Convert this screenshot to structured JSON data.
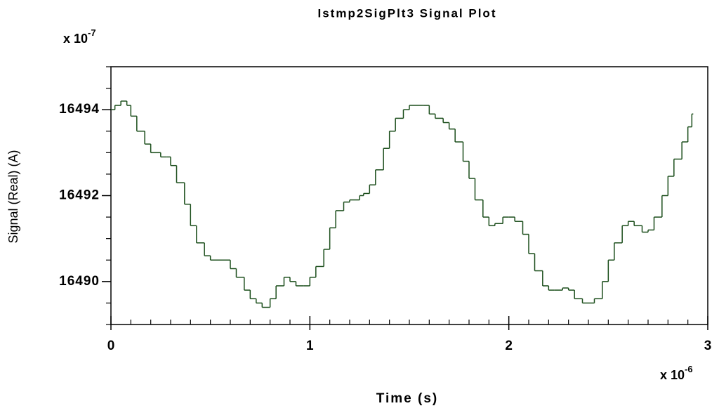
{
  "chart_data": {
    "type": "step",
    "title": "Istmp2SigPlt3 Signal Plot",
    "xlabel": "Time (s)",
    "ylabel": "Signal (Real) (A)",
    "x_multiplier": {
      "base": "x 10",
      "exponent": "-6"
    },
    "y_multiplier": {
      "base": "x 10",
      "exponent": "-7"
    },
    "xlim": [
      0,
      3
    ],
    "ylim": [
      16489,
      16495
    ],
    "xticks": [
      0,
      1,
      2,
      3
    ],
    "yticks": [
      16490,
      16492,
      16494
    ],
    "xminorticks": [
      0.1,
      0.2,
      0.3,
      0.4,
      0.5,
      0.6,
      0.7,
      0.8,
      0.9,
      1.1,
      1.2,
      1.3,
      1.4,
      1.5,
      1.6,
      1.7,
      1.8,
      1.9,
      2.1,
      2.2,
      2.3,
      2.4,
      2.5,
      2.6,
      2.7,
      2.8,
      2.9
    ],
    "yminorticks": [
      16489,
      16489.5,
      16490.5,
      16491,
      16491.5,
      16492.5,
      16493,
      16493.5,
      16494.5,
      16495
    ],
    "grid": false,
    "series": [
      {
        "name": "Istmp2SigPlt3",
        "color": "#1a4d1a",
        "x": [
          0,
          0.02,
          0.05,
          0.08,
          0.1,
          0.13,
          0.17,
          0.2,
          0.25,
          0.28,
          0.3,
          0.33,
          0.37,
          0.4,
          0.43,
          0.47,
          0.5,
          0.57,
          0.6,
          0.63,
          0.67,
          0.7,
          0.73,
          0.76,
          0.8,
          0.83,
          0.87,
          0.9,
          0.93,
          0.97,
          1.0,
          1.03,
          1.07,
          1.1,
          1.13,
          1.17,
          1.2,
          1.25,
          1.27,
          1.3,
          1.33,
          1.37,
          1.4,
          1.43,
          1.47,
          1.5,
          1.57,
          1.6,
          1.63,
          1.67,
          1.7,
          1.73,
          1.77,
          1.8,
          1.83,
          1.87,
          1.9,
          1.93,
          1.97,
          2.0,
          2.03,
          2.07,
          2.1,
          2.13,
          2.17,
          2.2,
          2.23,
          2.27,
          2.3,
          2.33,
          2.37,
          2.4,
          2.43,
          2.47,
          2.5,
          2.53,
          2.57,
          2.6,
          2.63,
          2.67,
          2.7,
          2.73,
          2.77,
          2.8,
          2.83,
          2.87,
          2.9,
          2.92
        ],
        "values": [
          16494.0,
          16494.1,
          16494.2,
          16494.1,
          16493.85,
          16493.5,
          16493.2,
          16493.0,
          16492.9,
          16492.9,
          16492.7,
          16492.3,
          16491.8,
          16491.3,
          16490.9,
          16490.6,
          16490.5,
          16490.5,
          16490.3,
          16490.1,
          16489.8,
          16489.6,
          16489.5,
          16489.4,
          16489.6,
          16489.9,
          16490.1,
          16490.0,
          16489.9,
          16489.9,
          16490.1,
          16490.35,
          16490.75,
          16491.25,
          16491.65,
          16491.85,
          16491.9,
          16492.0,
          16492.05,
          16492.25,
          16492.6,
          16493.1,
          16493.5,
          16493.8,
          16494.0,
          16494.1,
          16494.1,
          16493.9,
          16493.8,
          16493.7,
          16493.55,
          16493.25,
          16492.8,
          16492.4,
          16491.9,
          16491.5,
          16491.3,
          16491.35,
          16491.5,
          16491.5,
          16491.4,
          16491.1,
          16490.65,
          16490.25,
          16489.9,
          16489.8,
          16489.8,
          16489.85,
          16489.8,
          16489.6,
          16489.5,
          16489.5,
          16489.6,
          16490.0,
          16490.5,
          16490.9,
          16491.3,
          16491.4,
          16491.3,
          16491.15,
          16491.2,
          16491.5,
          16492.0,
          16492.45,
          16492.85,
          16493.25,
          16493.6,
          16493.9
        ]
      }
    ]
  }
}
